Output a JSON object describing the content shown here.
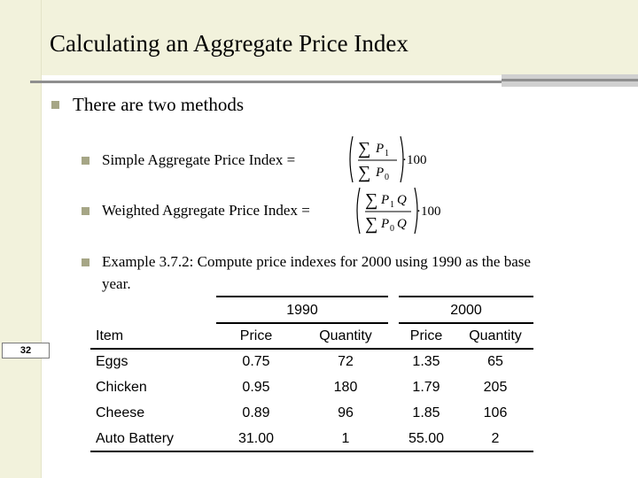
{
  "slide": {
    "title": "Calculating an Aggregate Price Index",
    "page_number": "32"
  },
  "bullets": {
    "main": "There are two methods",
    "simple": "Simple Aggregate Price Index =",
    "weighted": "Weighted Aggregate Price Index =",
    "example_line1": "Example 3.7.2: Compute price indexes for 2000 using 1990 as the base",
    "example_line2": "year."
  },
  "formulas": {
    "simple": {
      "numerator": "P",
      "numerator_sub": "1",
      "denominator": "P",
      "denominator_sub": "0",
      "factor": "·100"
    },
    "weighted": {
      "numerator": "P",
      "numerator_sub": "1",
      "numerator_weight": "Q",
      "denominator": "P",
      "denominator_sub": "0",
      "denominator_weight": "Q",
      "factor": "·100"
    }
  },
  "table": {
    "year_headers": [
      "1990",
      "2000"
    ],
    "columns": [
      "Item",
      "Price",
      "Quantity",
      "Price",
      "Quantity"
    ],
    "rows": [
      [
        "Eggs",
        "0.75",
        "72",
        "1.35",
        "65"
      ],
      [
        "Chicken",
        "0.95",
        "180",
        "1.79",
        "205"
      ],
      [
        "Cheese",
        "0.89",
        "96",
        "1.85",
        "106"
      ],
      [
        "Auto Battery",
        "31.00",
        "1",
        "55.00",
        "2"
      ]
    ]
  },
  "colors": {
    "band": "#f2f2dc",
    "bullet": "#a6a686",
    "rule": "#8e8e8e"
  }
}
